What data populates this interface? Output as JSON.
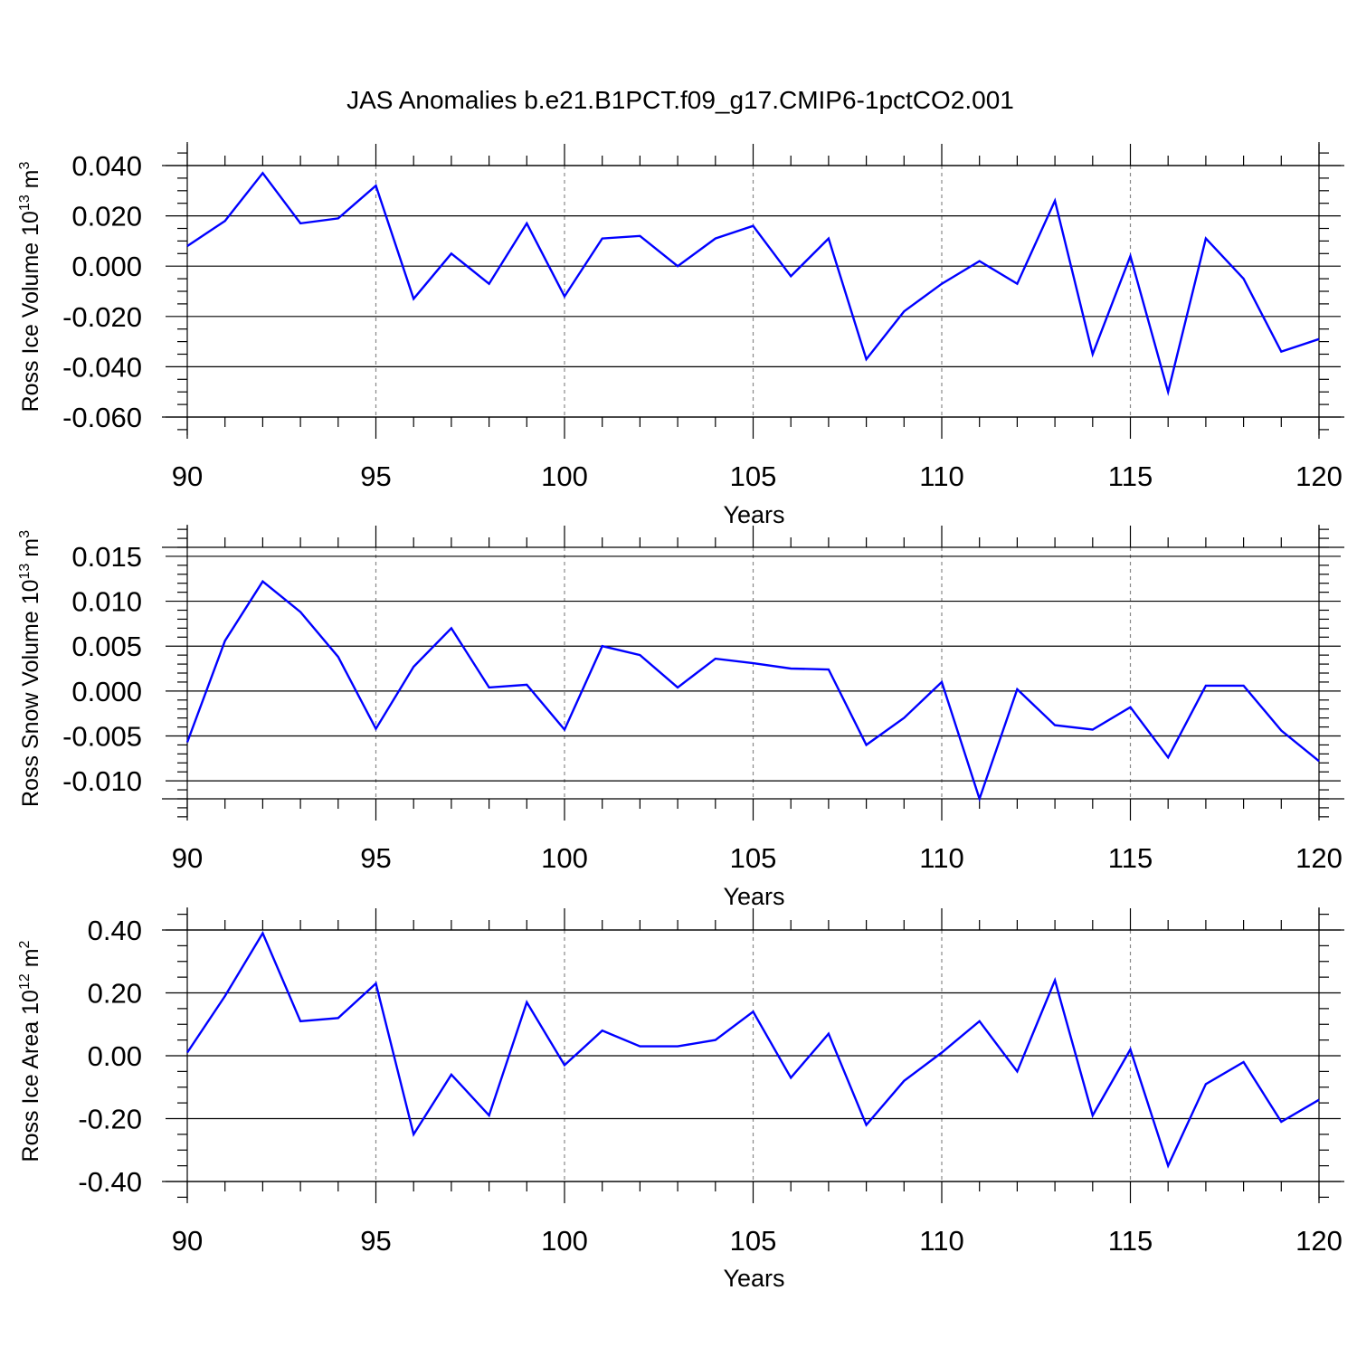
{
  "figure": {
    "title": "JAS Anomalies b.e21.B1PCT.f09_g17.CMIP6-1pctCO2.001"
  },
  "colors": {
    "series": "#0000ff",
    "axis": "#000000",
    "grid": "#888888"
  },
  "chart_data": [
    {
      "type": "line",
      "xlabel": "Years",
      "ylabel": {
        "text": "Ross Ice Volume 10",
        "exponent": "13",
        "unit": "m",
        "unit_exponent": "3"
      },
      "xlim": [
        90,
        120
      ],
      "ylim": [
        -0.06,
        0.04
      ],
      "ytick_display_range": [
        -0.06,
        0.04
      ],
      "x_ticks": [
        90,
        95,
        100,
        105,
        110,
        115,
        120
      ],
      "x_tick_labels": [
        "90",
        "95",
        "100",
        "105",
        "110",
        "115",
        "120"
      ],
      "y_ticks": [
        -0.06,
        -0.04,
        -0.02,
        0.0,
        0.02,
        0.04
      ],
      "y_tick_labels": [
        "-0.060",
        "-0.040",
        "-0.020",
        "0.000",
        "0.020",
        "0.040"
      ],
      "y_minor_step": 0.005,
      "grid": "vertical dashed at major x ticks",
      "x": [
        90,
        91,
        92,
        93,
        94,
        95,
        96,
        97,
        98,
        99,
        100,
        101,
        102,
        103,
        104,
        105,
        106,
        107,
        108,
        109,
        110,
        111,
        112,
        113,
        114,
        115,
        116,
        117,
        118,
        119,
        120
      ],
      "values": [
        0.008,
        0.018,
        0.037,
        0.017,
        0.019,
        0.032,
        -0.013,
        0.005,
        -0.007,
        0.017,
        -0.012,
        0.011,
        0.012,
        0.0,
        0.011,
        0.016,
        -0.004,
        0.011,
        -0.037,
        -0.018,
        -0.007,
        0.002,
        -0.007,
        0.026,
        -0.035,
        0.004,
        -0.05,
        0.011,
        -0.005,
        -0.034,
        -0.029
      ]
    },
    {
      "type": "line",
      "xlabel": "Years",
      "ylabel": {
        "text": "Ross Snow Volume 10",
        "exponent": "13",
        "unit": "m",
        "unit_exponent": "3"
      },
      "xlim": [
        90,
        120
      ],
      "ylim": [
        -0.012,
        0.016
      ],
      "x_ticks": [
        90,
        95,
        100,
        105,
        110,
        115,
        120
      ],
      "x_tick_labels": [
        "90",
        "95",
        "100",
        "105",
        "110",
        "115",
        "120"
      ],
      "y_ticks": [
        -0.01,
        -0.005,
        0.0,
        0.005,
        0.01,
        0.015
      ],
      "y_tick_labels": [
        "-0.010",
        "-0.005",
        "0.000",
        "0.005",
        "0.010",
        "0.015"
      ],
      "y_minor_step": 0.001,
      "grid": "vertical dashed at major x ticks",
      "x": [
        90,
        91,
        92,
        93,
        94,
        95,
        96,
        97,
        98,
        99,
        100,
        101,
        102,
        103,
        104,
        105,
        106,
        107,
        108,
        109,
        110,
        111,
        112,
        113,
        114,
        115,
        116,
        117,
        118,
        119,
        120
      ],
      "values": [
        -0.0057,
        0.0056,
        0.0122,
        0.0088,
        0.0038,
        -0.0042,
        0.0027,
        0.007,
        0.0004,
        0.0007,
        -0.0043,
        0.005,
        0.004,
        0.0004,
        0.0036,
        0.0031,
        0.0025,
        0.0024,
        -0.006,
        -0.003,
        0.001,
        -0.012,
        0.0002,
        -0.0038,
        -0.0043,
        -0.0018,
        -0.0074,
        0.0006,
        0.0006,
        -0.0044,
        -0.0078
      ]
    },
    {
      "type": "line",
      "xlabel": "Years",
      "ylabel": {
        "text": "Ross Ice Area 10",
        "exponent": "12",
        "unit": "m",
        "unit_exponent": "2"
      },
      "xlim": [
        90,
        120
      ],
      "ylim": [
        -0.4,
        0.4
      ],
      "x_ticks": [
        90,
        95,
        100,
        105,
        110,
        115,
        120
      ],
      "x_tick_labels": [
        "90",
        "95",
        "100",
        "105",
        "110",
        "115",
        "120"
      ],
      "y_ticks": [
        -0.4,
        -0.2,
        0.0,
        0.2,
        0.4
      ],
      "y_tick_labels": [
        "-0.40",
        "-0.20",
        "0.00",
        "0.20",
        "0.40"
      ],
      "y_minor_step": 0.05,
      "grid": "vertical dashed at major x ticks",
      "x": [
        90,
        91,
        92,
        93,
        94,
        95,
        96,
        97,
        98,
        99,
        100,
        101,
        102,
        103,
        104,
        105,
        106,
        107,
        108,
        109,
        110,
        111,
        112,
        113,
        114,
        115,
        116,
        117,
        118,
        119,
        120
      ],
      "values": [
        0.01,
        0.19,
        0.39,
        0.11,
        0.12,
        0.23,
        -0.25,
        -0.06,
        -0.19,
        0.17,
        -0.03,
        0.08,
        0.03,
        0.03,
        0.05,
        0.14,
        -0.07,
        0.07,
        -0.22,
        -0.08,
        0.01,
        0.11,
        -0.05,
        0.24,
        -0.19,
        0.02,
        -0.35,
        -0.09,
        -0.02,
        -0.21,
        -0.14
      ]
    }
  ]
}
